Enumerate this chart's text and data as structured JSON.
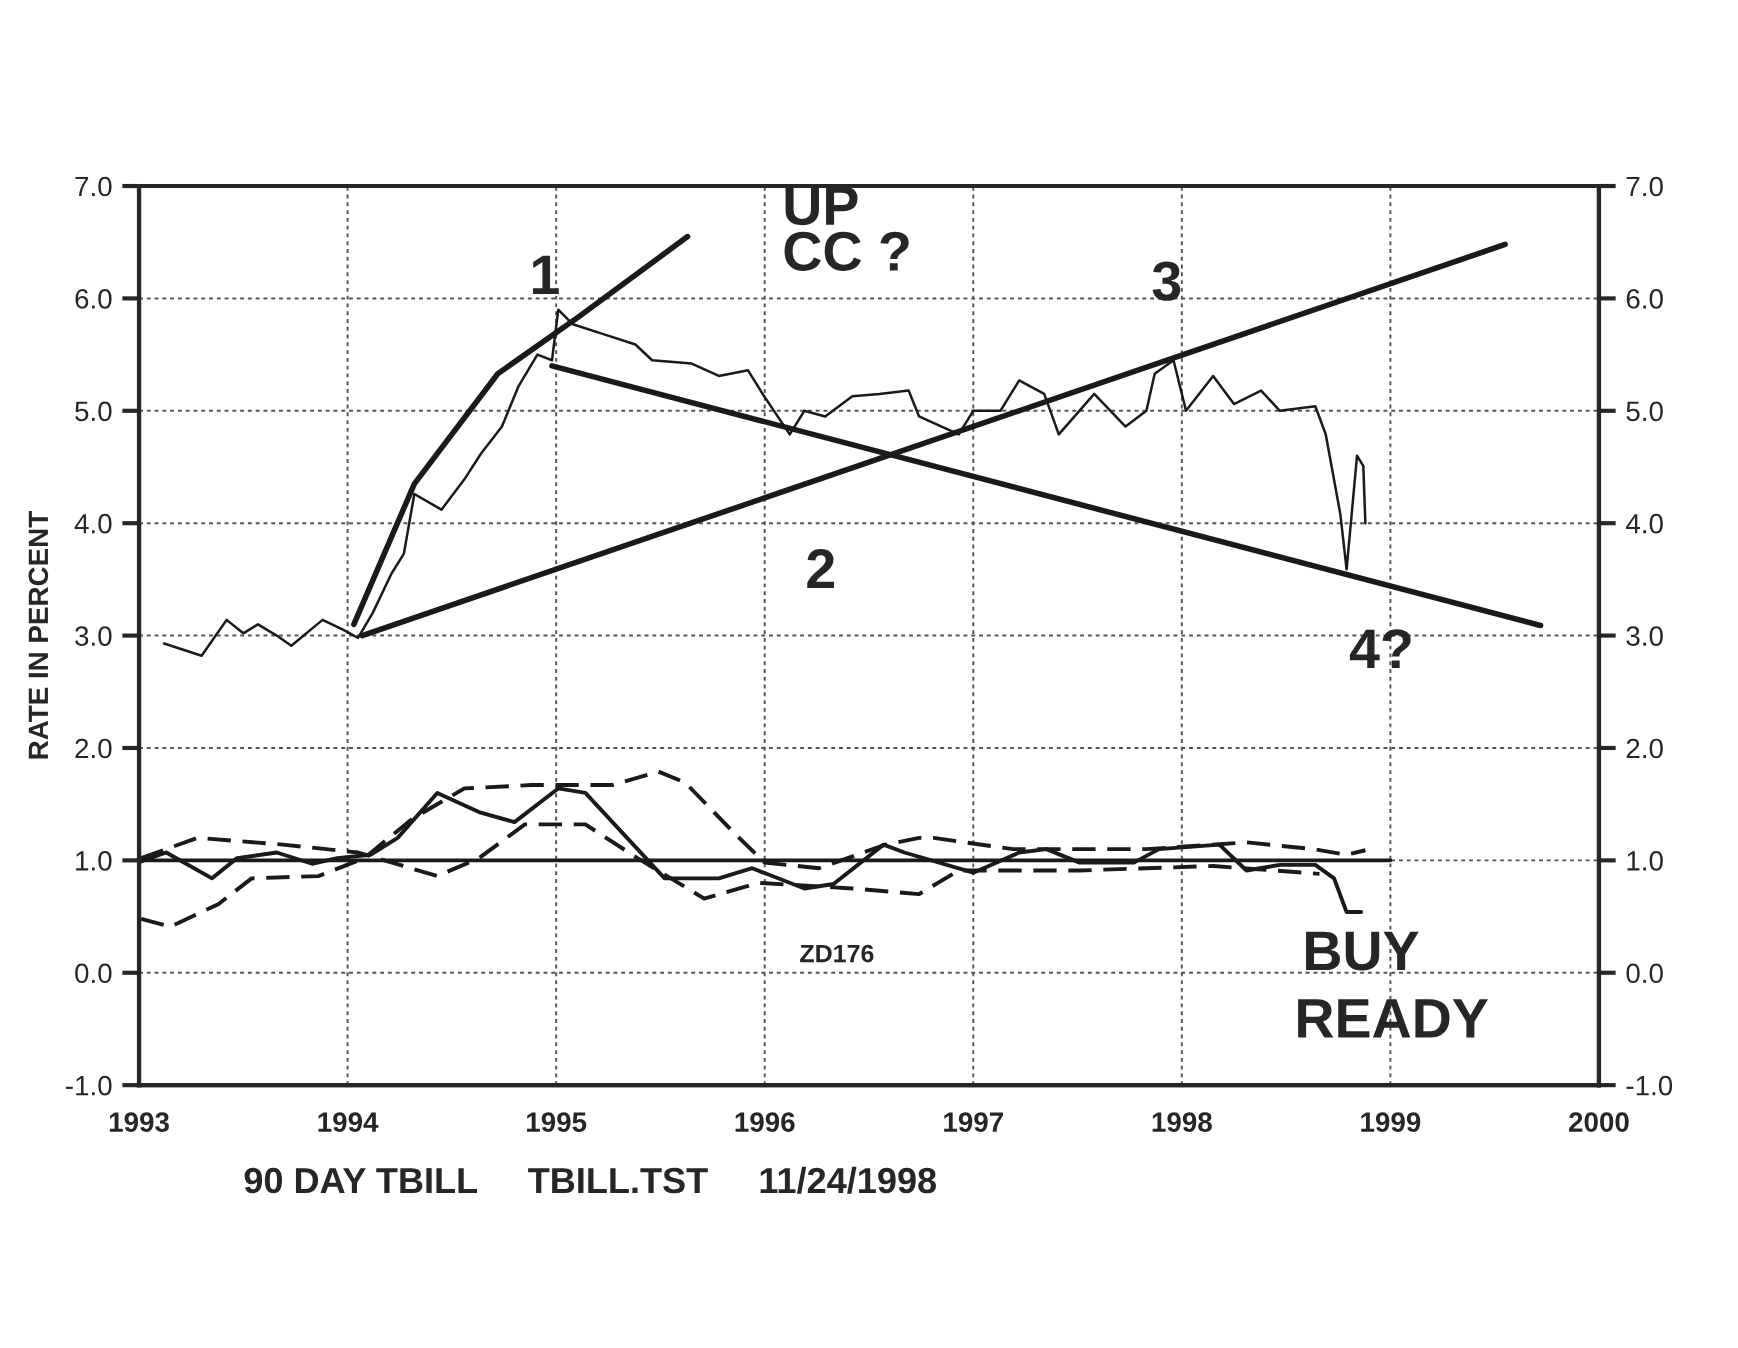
{
  "chart_data": {
    "type": "line",
    "ylabel": "RATE IN PERCENT",
    "xlim": [
      1993,
      2000
    ],
    "xticks": [
      1993,
      1994,
      1995,
      1996,
      1997,
      1998,
      1999,
      2000
    ],
    "ylim": [
      -1.0,
      7.0
    ],
    "yticks": [
      {
        "value": -1,
        "label": "-1.0"
      },
      {
        "value": 0,
        "label": "0.0"
      },
      {
        "value": 1,
        "label": "1.0"
      },
      {
        "value": 2,
        "label": "2.0"
      },
      {
        "value": 3,
        "label": "3.0"
      },
      {
        "value": 4,
        "label": "4.0"
      },
      {
        "value": 5,
        "label": "5.0"
      },
      {
        "value": 6,
        "label": "6.0"
      },
      {
        "value": 7,
        "label": "7.0"
      }
    ],
    "y2lim": [
      -1.0,
      7.0
    ],
    "y2ticks": [
      {
        "value": -1,
        "label": "-1.0"
      },
      {
        "value": 0,
        "label": "0.0"
      },
      {
        "value": 1,
        "label": "1.0"
      },
      {
        "value": 2,
        "label": "2.0"
      },
      {
        "value": 3,
        "label": "3.0"
      },
      {
        "value": 4,
        "label": "4.0"
      },
      {
        "value": 5,
        "label": "5.0"
      },
      {
        "value": 6,
        "label": "6.0"
      },
      {
        "value": 7,
        "label": "7.0"
      }
    ],
    "grid": true,
    "series": [
      {
        "color": "#1a1a1a",
        "line_style": "solid",
        "x": [
          1993.12,
          1993.3,
          1993.42,
          1993.5,
          1993.57,
          1993.66,
          1993.73,
          1993.88,
          1993.98,
          1994.05,
          1994.12,
          1994.21,
          1994.27,
          1994.32,
          1994.45,
          1994.56,
          1994.64,
          1994.74,
          1994.82,
          1994.91,
          1994.98,
          1995.01,
          1995.08,
          1995.23,
          1995.38,
          1995.46,
          1995.65,
          1995.78,
          1995.92,
          1995.99,
          1996.12,
          1996.19,
          1996.29,
          1996.42,
          1996.55,
          1996.69,
          1996.74,
          1996.93,
          1997.0,
          1997.13,
          1997.22,
          1997.34,
          1997.41,
          1997.58,
          1997.73,
          1997.83,
          1997.87,
          1997.96,
          1998.02,
          1998.15,
          1998.25,
          1998.38,
          1998.47,
          1998.64,
          1998.69,
          1998.76,
          1998.79,
          1998.84,
          1998.87,
          1998.88
        ],
        "values": [
          2.93,
          2.82,
          3.14,
          3.02,
          3.1,
          3.0,
          2.91,
          3.14,
          3.05,
          2.98,
          3.2,
          3.55,
          3.73,
          4.26,
          4.12,
          4.39,
          4.62,
          4.86,
          5.22,
          5.5,
          5.45,
          5.9,
          5.77,
          5.68,
          5.59,
          5.45,
          5.42,
          5.31,
          5.36,
          5.15,
          4.79,
          5.0,
          4.95,
          5.13,
          5.15,
          5.18,
          4.95,
          4.79,
          5.0,
          5.0,
          5.27,
          5.15,
          4.79,
          5.15,
          4.86,
          5.0,
          5.33,
          5.45,
          5.0,
          5.31,
          5.06,
          5.18,
          5.0,
          5.04,
          4.79,
          4.08,
          3.59,
          4.6,
          4.51,
          4.0
        ]
      },
      {
        "color": "#1a1a1a",
        "line_style": "solid",
        "x": [
          1994.03,
          1994.32,
          1994.72,
          1995.11,
          1995.63
        ],
        "values": [
          3.1,
          4.35,
          5.33,
          5.84,
          6.55
        ]
      },
      {
        "color": "#1a1a1a",
        "line_style": "solid",
        "x": [
          1994.07,
          1999.55
        ],
        "values": [
          3.0,
          6.48
        ]
      },
      {
        "color": "#1a1a1a",
        "line_style": "solid",
        "x": [
          1994.98,
          1999.72
        ],
        "values": [
          5.4,
          3.09
        ]
      },
      {
        "color": "#1a1a1a",
        "line_style": "solid",
        "x": [
          1993.0,
          1999.0
        ],
        "values": [
          1.0,
          1.0
        ]
      },
      {
        "color": "#1a1a1a",
        "line_style": "solid",
        "x": [
          1993.01,
          1993.13,
          1993.35,
          1993.47,
          1993.66,
          1993.83,
          1993.95,
          1994.11,
          1994.24,
          1994.43,
          1994.63,
          1994.8,
          1995.01,
          1995.14,
          1995.37,
          1995.52,
          1995.78,
          1995.94,
          1996.19,
          1996.33,
          1996.57,
          1996.67,
          1997.0,
          1997.22,
          1997.35,
          1997.51,
          1997.77,
          1997.89,
          1998.18,
          1998.31,
          1998.47,
          1998.64,
          1998.73,
          1998.79,
          1998.86
        ],
        "values": [
          0.99,
          1.07,
          0.84,
          1.02,
          1.07,
          0.97,
          1.02,
          1.05,
          1.2,
          1.6,
          1.43,
          1.34,
          1.64,
          1.6,
          1.14,
          0.84,
          0.84,
          0.93,
          0.75,
          0.79,
          1.14,
          1.07,
          0.89,
          1.07,
          1.1,
          0.98,
          0.98,
          1.1,
          1.14,
          0.91,
          0.96,
          0.96,
          0.84,
          0.54,
          0.54
        ]
      },
      {
        "color": "#1a1a1a",
        "line_style": "dashed",
        "x": [
          1993.01,
          1993.15,
          1993.38,
          1993.54,
          1993.86,
          1994.08,
          1994.31,
          1994.56,
          1994.88,
          1995.27,
          1995.49,
          1995.62,
          1995.85,
          1996.0,
          1996.26,
          1996.58,
          1996.74,
          1996.81,
          1997.19,
          1997.83,
          1998.31,
          1998.63,
          1998.79,
          1998.88
        ],
        "values": [
          0.48,
          0.41,
          0.61,
          0.84,
          0.86,
          1.02,
          1.37,
          1.64,
          1.67,
          1.67,
          1.79,
          1.69,
          1.25,
          0.98,
          0.93,
          1.14,
          1.2,
          1.2,
          1.1,
          1.1,
          1.16,
          1.1,
          1.05,
          1.09
        ]
      },
      {
        "color": "#1a1a1a",
        "line_style": "dashed",
        "x": [
          1993.01,
          1993.28,
          1993.69,
          1994.05,
          1994.43,
          1994.63,
          1994.85,
          1995.14,
          1995.39,
          1995.71,
          1995.97,
          1996.42,
          1996.74,
          1996.93,
          1997.51,
          1998.15,
          1998.66
        ],
        "values": [
          1.02,
          1.2,
          1.14,
          1.07,
          0.86,
          1.02,
          1.32,
          1.32,
          1.02,
          0.66,
          0.8,
          0.75,
          0.7,
          0.91,
          0.91,
          0.95,
          0.88
        ]
      }
    ],
    "annotations": [
      "UP",
      "CC ?",
      "1",
      "2",
      "3",
      "4?",
      "ZD176",
      "BUY",
      "READY",
      "90 DAY TBILL     TBILL.TST     11/24/1998"
    ]
  }
}
